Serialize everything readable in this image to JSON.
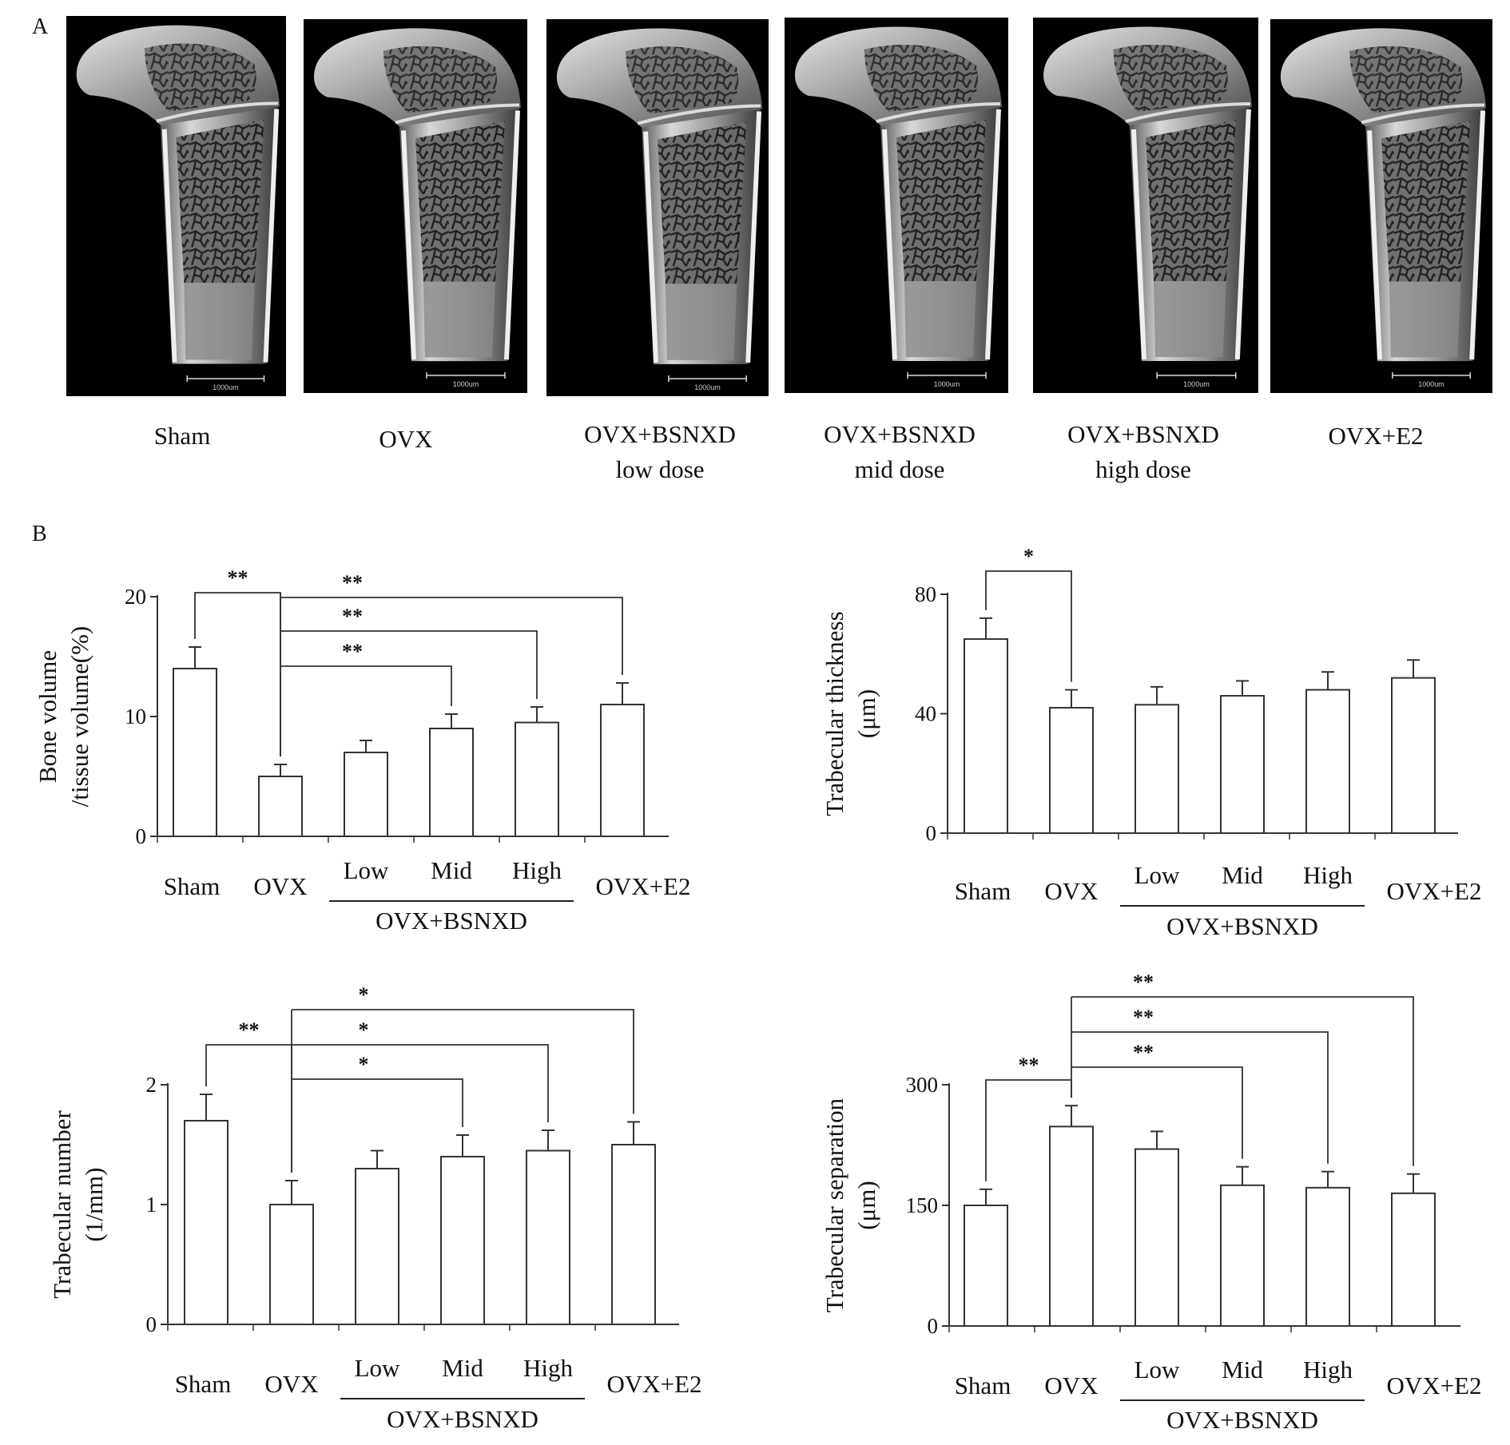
{
  "panel_a": {
    "label": "A",
    "scale_bar_text": "1000um",
    "groups": [
      {
        "line1": "Sham",
        "line2": ""
      },
      {
        "line1": "OVX",
        "line2": ""
      },
      {
        "line1": "OVX+BSNXD",
        "line2": "low dose"
      },
      {
        "line1": "OVX+BSNXD",
        "line2": "mid dose"
      },
      {
        "line1": "OVX+BSNXD",
        "line2": "high dose"
      },
      {
        "line1": "OVX+E2",
        "line2": ""
      }
    ]
  },
  "panel_b": {
    "label": "B",
    "treatment_group_label": "OVX+BSNXD"
  },
  "chart_data": [
    {
      "type": "bar",
      "ylabel": [
        "Bone  volume",
        "/tissue volume(%)"
      ],
      "categories": [
        "Sham",
        "OVX",
        "Low",
        "Mid",
        "High",
        "OVX+E2"
      ],
      "values": [
        14,
        5,
        7,
        9,
        9.5,
        11
      ],
      "errors": [
        1.8,
        1.0,
        1.0,
        1.2,
        1.3,
        1.8
      ],
      "ylim": [
        0,
        20
      ],
      "yticks": [
        0,
        10,
        20
      ],
      "significance": [
        {
          "from": 0,
          "to": 1,
          "label": "**"
        },
        {
          "from": 1,
          "to": 3,
          "label": "**"
        },
        {
          "from": 1,
          "to": 4,
          "label": "**"
        },
        {
          "from": 1,
          "to": 5,
          "label": "**"
        }
      ]
    },
    {
      "type": "bar",
      "ylabel": [
        "Trabecular thickness",
        "(μm)"
      ],
      "categories": [
        "Sham",
        "OVX",
        "Low",
        "Mid",
        "High",
        "OVX+E2"
      ],
      "values": [
        65,
        42,
        43,
        46,
        48,
        52
      ],
      "errors": [
        7,
        6,
        6,
        5,
        6,
        6
      ],
      "ylim": [
        0,
        80
      ],
      "yticks": [
        0,
        40,
        80
      ],
      "significance": [
        {
          "from": 0,
          "to": 1,
          "label": "*"
        }
      ]
    },
    {
      "type": "bar",
      "ylabel": [
        "Trabecular number",
        "(1/mm)"
      ],
      "categories": [
        "Sham",
        "OVX",
        "Low",
        "Mid",
        "High",
        "OVX+E2"
      ],
      "values": [
        1.7,
        1.0,
        1.3,
        1.4,
        1.45,
        1.5
      ],
      "errors": [
        0.22,
        0.2,
        0.15,
        0.18,
        0.17,
        0.19
      ],
      "ylim": [
        0,
        2
      ],
      "yticks": [
        0,
        1,
        2
      ],
      "significance": [
        {
          "from": 0,
          "to": 1,
          "label": "**"
        },
        {
          "from": 1,
          "to": 3,
          "label": "*"
        },
        {
          "from": 1,
          "to": 4,
          "label": "*"
        },
        {
          "from": 1,
          "to": 5,
          "label": "*"
        }
      ]
    },
    {
      "type": "bar",
      "ylabel": [
        "Trabecular separation",
        "(μm)"
      ],
      "categories": [
        "Sham",
        "OVX",
        "Low",
        "Mid",
        "High",
        "OVX+E2"
      ],
      "values": [
        150,
        248,
        220,
        175,
        172,
        165
      ],
      "errors": [
        20,
        26,
        22,
        23,
        20,
        24
      ],
      "ylim": [
        0,
        300
      ],
      "yticks": [
        0,
        150,
        300
      ],
      "significance": [
        {
          "from": 0,
          "to": 1,
          "label": "**"
        },
        {
          "from": 1,
          "to": 3,
          "label": "**"
        },
        {
          "from": 1,
          "to": 4,
          "label": "**"
        },
        {
          "from": 1,
          "to": 5,
          "label": "**"
        }
      ]
    }
  ]
}
